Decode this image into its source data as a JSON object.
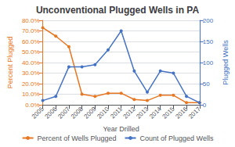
{
  "chart_data": {
    "type": "line",
    "title": "Unconventional Plugged Wells in PA",
    "xlabel": "Year Drilled",
    "ylabel": "Percent Plugged",
    "y2label": "Plugged Wells",
    "x": [
      2005,
      2006,
      2007,
      2008,
      2009,
      2010,
      2011,
      2012,
      2013,
      2014,
      2015,
      2016,
      2017
    ],
    "xlim": [
      2005,
      2017
    ],
    "xticks": [
      2005,
      2006,
      2007,
      2008,
      2009,
      2010,
      2011,
      2012,
      2013,
      2014,
      2015,
      2016,
      2017
    ],
    "series": [
      {
        "name": "Percent of Wells Plugged",
        "color": "#E87722",
        "marker": "circle",
        "values": [
          73.0,
          65.0,
          55.0,
          10.0,
          8.0,
          11.0,
          11.0,
          5.0,
          4.0,
          9.0,
          9.0,
          2.0,
          2.0
        ]
      },
      {
        "name": "Count of Plugged Wells",
        "color": "#4472C4",
        "marker": "circle",
        "axis": "y2",
        "values": [
          10,
          20,
          90,
          90,
          95,
          130,
          175,
          80,
          30,
          80,
          75,
          20,
          5
        ]
      }
    ],
    "ylim": [
      0,
      80
    ],
    "yticks": [
      {
        "value": 0,
        "label": "0.0%"
      },
      {
        "value": 10,
        "label": "10.0%"
      },
      {
        "value": 20,
        "label": "20.0%"
      },
      {
        "value": 30,
        "label": "30.0%"
      },
      {
        "value": 40,
        "label": "40.0%"
      },
      {
        "value": 50,
        "label": "50.0%"
      },
      {
        "value": 60,
        "label": "60.0%"
      },
      {
        "value": 70,
        "label": "70.0%"
      },
      {
        "value": 80,
        "label": "80.0%"
      }
    ],
    "y2lim": [
      0,
      200
    ],
    "y2ticks": [
      0,
      50,
      100,
      150,
      200
    ],
    "grid": true,
    "legend": "bottom"
  }
}
